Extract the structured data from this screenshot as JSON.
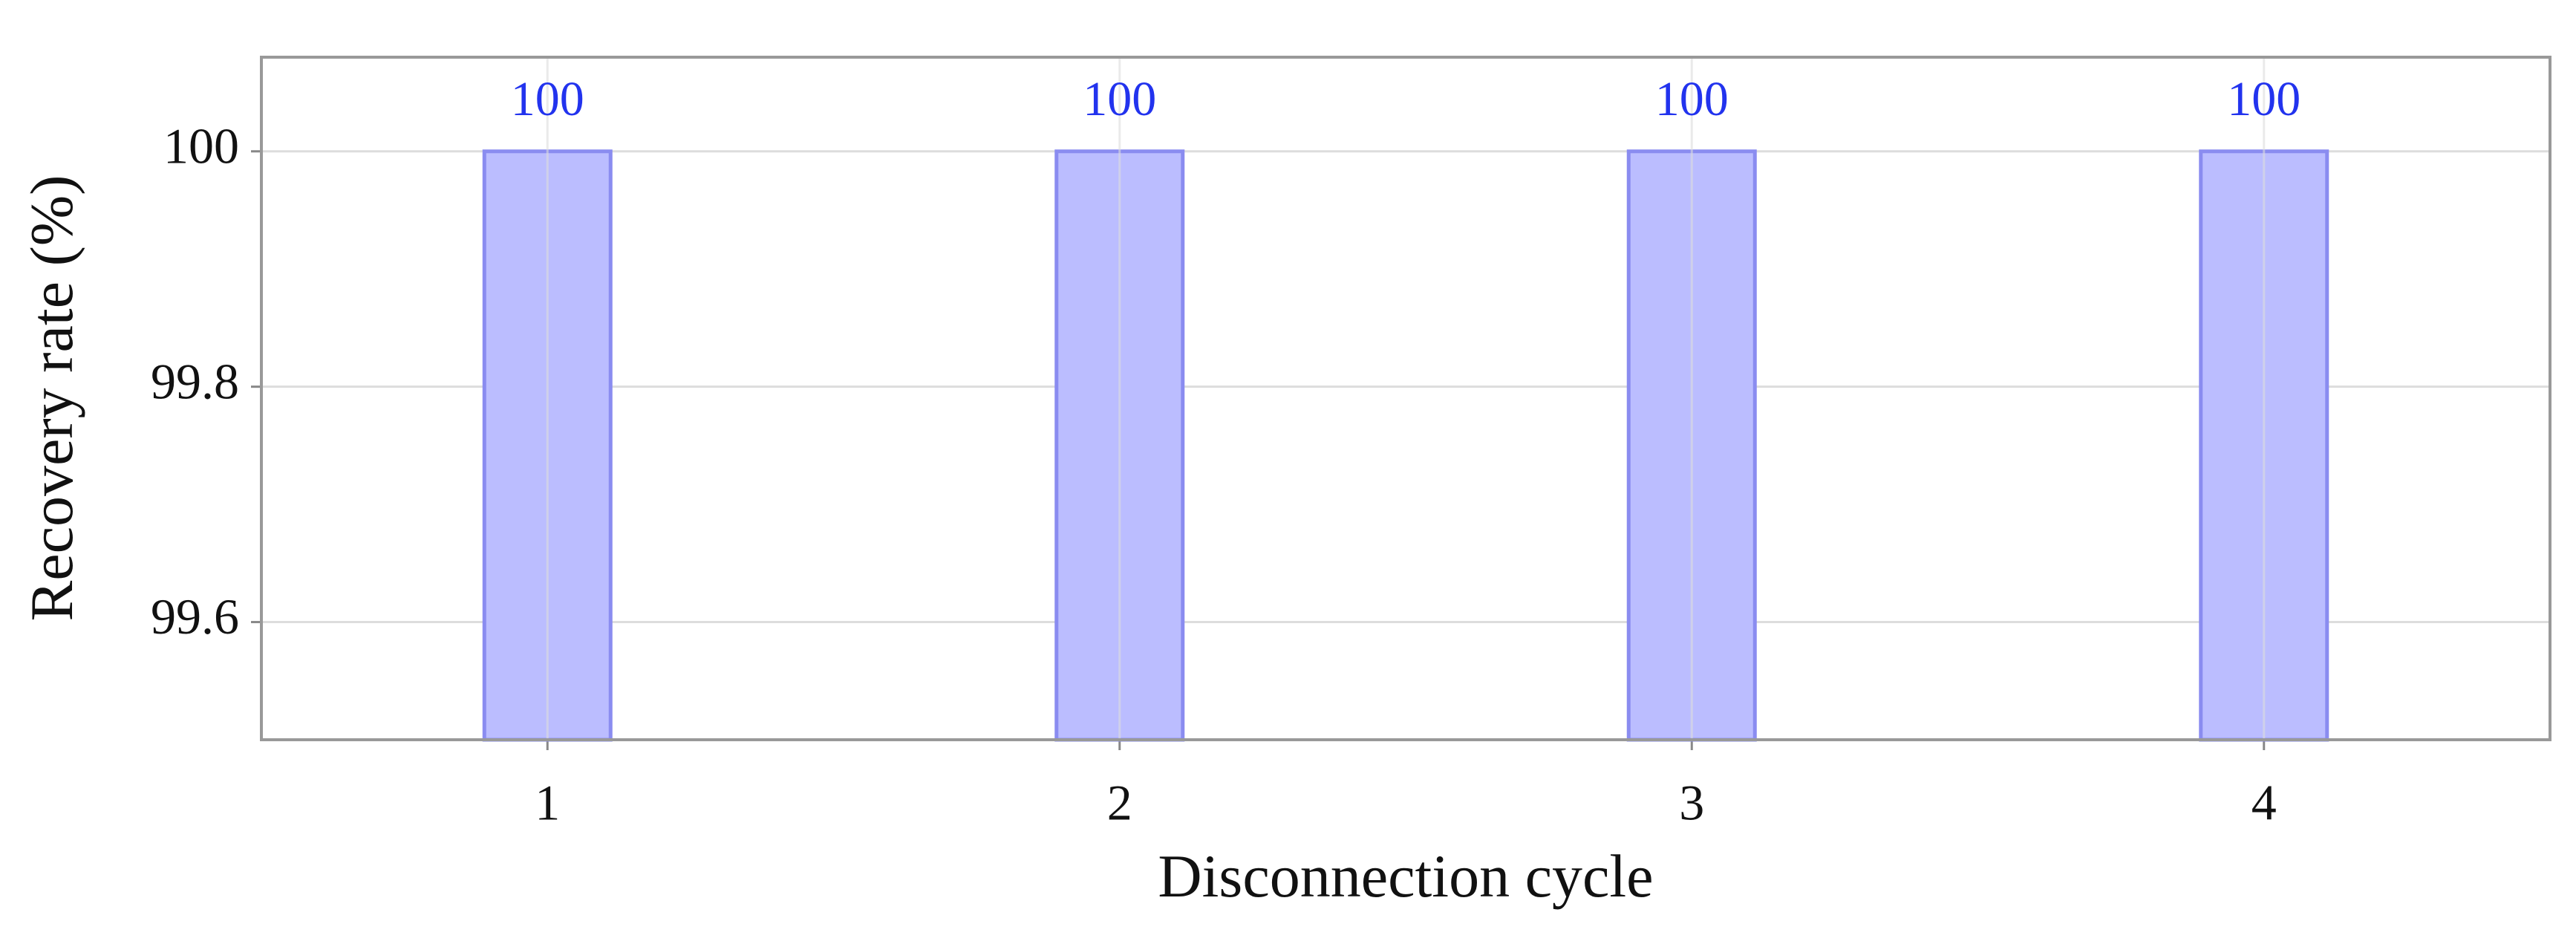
{
  "chart_data": {
    "type": "bar",
    "x_label": "Disconnection cycle",
    "y_label": "Recovery rate (%)",
    "categories": [
      1,
      2,
      3,
      4
    ],
    "values": [
      100,
      100,
      100,
      100
    ],
    "color": "#bbbdff",
    "edge_color": "#8a8cf0",
    "label_color": "#2233ee",
    "ylim": [
      99.5,
      100.08
    ],
    "yticks": [
      99.6,
      99.8,
      100
    ],
    "grid": true
  }
}
